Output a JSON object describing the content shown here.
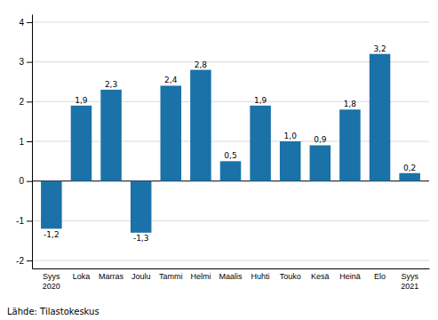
{
  "chart_data": {
    "type": "bar",
    "categories": [
      "Syys\n2020",
      "Loka",
      "Marras",
      "Joulu",
      "Tammi",
      "Helmi",
      "Maalis",
      "Huhti",
      "Touko",
      "Kesä",
      "Heinä",
      "Elo",
      "Syys\n2021"
    ],
    "values": [
      -1.2,
      1.9,
      2.3,
      -1.3,
      2.4,
      2.8,
      0.5,
      1.9,
      1.0,
      0.9,
      1.8,
      3.2,
      0.2
    ],
    "value_labels": [
      "-1,2",
      "1,9",
      "2,3",
      "-1,3",
      "2,4",
      "2,8",
      "0,5",
      "1,9",
      "1,0",
      "0,9",
      "1,8",
      "3,2",
      "0,2"
    ],
    "data_labels": true,
    "color": "#1a72a8",
    "ylim": [
      -2.2,
      4.2
    ],
    "yticks": [
      -2,
      -1,
      0,
      1,
      2,
      3,
      4
    ],
    "grid": true,
    "source": "Lähde: Tilastokeskus"
  }
}
